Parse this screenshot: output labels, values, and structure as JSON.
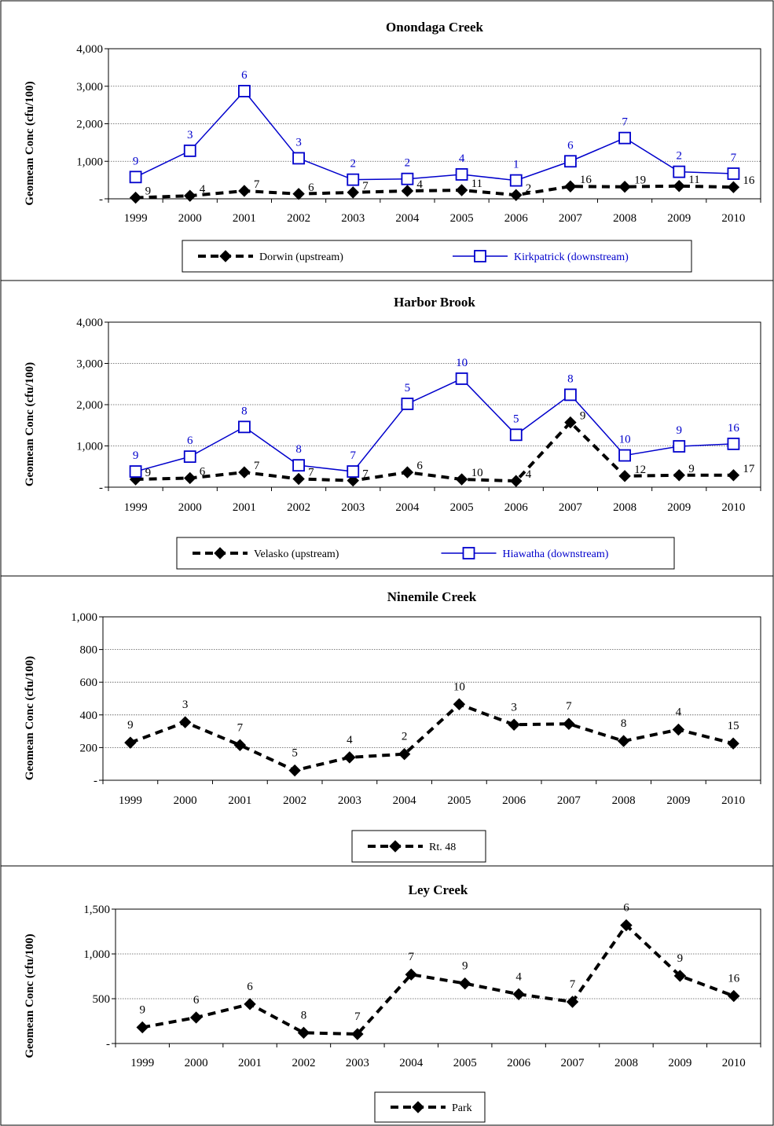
{
  "chart_data": [
    {
      "type": "line",
      "title": "Onondaga Creek",
      "ylabel": "Geomean Conc (cfu/100)",
      "xlabel": "",
      "categories": [
        "1999",
        "2000",
        "2001",
        "2002",
        "2003",
        "2004",
        "2005",
        "2006",
        "2007",
        "2008",
        "2009",
        "2010"
      ],
      "ylim": [
        0,
        4000
      ],
      "yticks": [
        0,
        1000,
        2000,
        3000,
        4000
      ],
      "ytick_labels": [
        "-",
        "1,000",
        "2,000",
        "3,000",
        "4,000"
      ],
      "grid": true,
      "legend_position": "bottom",
      "series": [
        {
          "name": "Dorwin (upstream)",
          "color": "#000000",
          "style": "dashed",
          "marker": "diamond",
          "values": [
            30,
            80,
            210,
            130,
            170,
            210,
            230,
            100,
            330,
            320,
            340,
            310
          ],
          "labels": [
            "9",
            "4",
            "7",
            "6",
            "7",
            "4",
            "11",
            "2",
            "16",
            "19",
            "11",
            "16"
          ]
        },
        {
          "name": "Kirkpatrick (downstream)",
          "color": "#0000CC",
          "style": "solid",
          "marker": "square",
          "values": [
            580,
            1280,
            2870,
            1080,
            510,
            530,
            650,
            490,
            1000,
            1620,
            720,
            670
          ],
          "labels": [
            "9",
            "3",
            "6",
            "3",
            "2",
            "2",
            "4",
            "1",
            "6",
            "7",
            "2",
            "7"
          ]
        }
      ]
    },
    {
      "type": "line",
      "title": "Harbor Brook",
      "ylabel": "Geomean Conc (cfu/100)",
      "xlabel": "",
      "categories": [
        "1999",
        "2000",
        "2001",
        "2002",
        "2003",
        "2004",
        "2005",
        "2006",
        "2007",
        "2008",
        "2009",
        "2010"
      ],
      "ylim": [
        0,
        4000
      ],
      "yticks": [
        0,
        1000,
        2000,
        3000,
        4000
      ],
      "ytick_labels": [
        "-",
        "1,000",
        "2,000",
        "3,000",
        "4,000"
      ],
      "grid": true,
      "legend_position": "bottom",
      "series": [
        {
          "name": "Velasko (upstream)",
          "color": "#000000",
          "style": "dashed",
          "marker": "diamond",
          "values": [
            190,
            220,
            360,
            200,
            160,
            360,
            190,
            150,
            1570,
            270,
            290,
            290
          ],
          "labels": [
            "9",
            "6",
            "7",
            "7",
            "7",
            "6",
            "10",
            "4",
            "9",
            "12",
            "9",
            "17"
          ]
        },
        {
          "name": "Hiawatha (downstream)",
          "color": "#0000CC",
          "style": "solid",
          "marker": "square",
          "values": [
            380,
            740,
            1460,
            530,
            380,
            2020,
            2630,
            1270,
            2240,
            770,
            990,
            1050
          ],
          "labels": [
            "9",
            "6",
            "8",
            "8",
            "7",
            "5",
            "10",
            "5",
            "8",
            "10",
            "9",
            "16"
          ]
        }
      ]
    },
    {
      "type": "line",
      "title": "Ninemile  Creek",
      "ylabel": "Geomean Conc (cfu/100)",
      "xlabel": "",
      "categories": [
        "1999",
        "2000",
        "2001",
        "2002",
        "2003",
        "2004",
        "2005",
        "2006",
        "2007",
        "2008",
        "2009",
        "2010"
      ],
      "ylim": [
        0,
        1000
      ],
      "yticks": [
        0,
        200,
        400,
        600,
        800,
        1000
      ],
      "ytick_labels": [
        "-",
        "200",
        "400",
        "600",
        "800",
        "1,000"
      ],
      "grid": true,
      "legend_position": "bottom",
      "series": [
        {
          "name": "Rt. 48",
          "color": "#000000",
          "style": "dashed",
          "marker": "diamond",
          "values": [
            230,
            355,
            215,
            60,
            140,
            160,
            465,
            340,
            345,
            240,
            310,
            225
          ],
          "labels": [
            "9",
            "3",
            "7",
            "5",
            "4",
            "2",
            "10",
            "3",
            "7",
            "8",
            "4",
            "15"
          ]
        }
      ]
    },
    {
      "type": "line",
      "title": "Ley Creek",
      "ylabel": "Geomean Conc (cfu/100)",
      "xlabel": "",
      "categories": [
        "1999",
        "2000",
        "2001",
        "2002",
        "2003",
        "2004",
        "2005",
        "2006",
        "2007",
        "2008",
        "2009",
        "2010"
      ],
      "ylim": [
        0,
        1500
      ],
      "yticks": [
        0,
        500,
        1000,
        1500
      ],
      "ytick_labels": [
        "-",
        "500",
        "1,000",
        "1,500"
      ],
      "grid": true,
      "legend_position": "bottom",
      "series": [
        {
          "name": "Park",
          "color": "#000000",
          "style": "dashed",
          "marker": "diamond",
          "values": [
            180,
            290,
            440,
            120,
            105,
            770,
            670,
            550,
            465,
            1320,
            755,
            530
          ],
          "labels": [
            "9",
            "6",
            "6",
            "8",
            "7",
            "7",
            "9",
            "4",
            "7",
            "6",
            "9",
            "16"
          ]
        }
      ]
    }
  ]
}
